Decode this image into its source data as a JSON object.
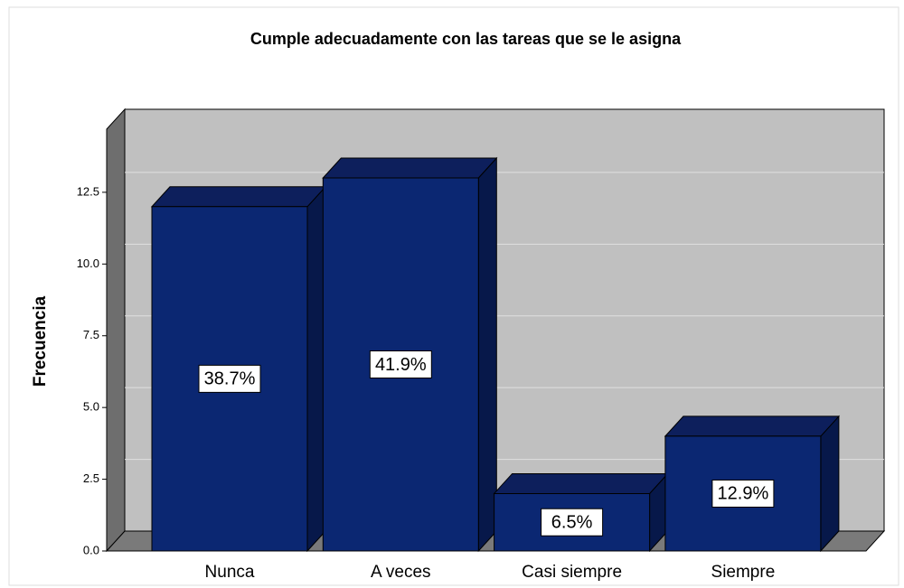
{
  "chart_data": {
    "type": "bar3d",
    "title": "Cumple adecuadamente con las tareas que se le asigna",
    "ylabel": "Frecuencia",
    "categories": [
      "Nunca",
      "A veces",
      "Casi siempre",
      "Siempre"
    ],
    "values": [
      12,
      13,
      2,
      4
    ],
    "data_labels": [
      "38.7%",
      "41.9%",
      "6.5%",
      "12.9%"
    ],
    "color": "#0b2772",
    "ylim": [
      0,
      14.7
    ],
    "yticks": [
      {
        "value": 0,
        "label": "0.0"
      },
      2.5,
      {
        "value": 5,
        "label": "5.0"
      },
      7.5,
      {
        "value": 10,
        "label": "10.0"
      },
      12.5
    ],
    "grid": true
  }
}
